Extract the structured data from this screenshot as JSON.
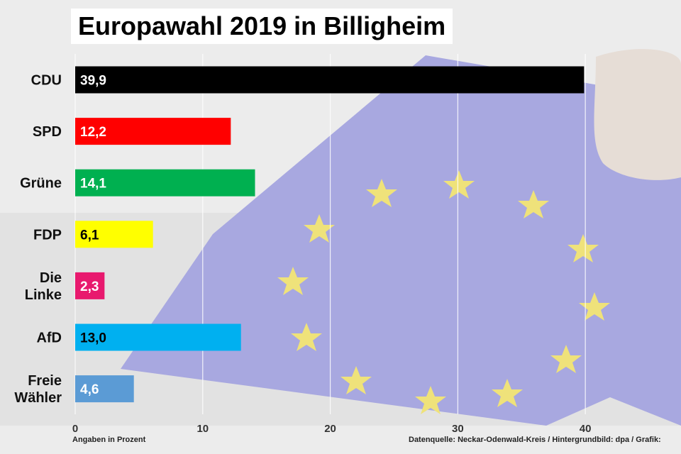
{
  "chart_data": {
    "type": "bar",
    "orientation": "horizontal",
    "title": "Europawahl 2019 in Billigheim",
    "categories": [
      "CDU",
      "SPD",
      "Grüne",
      "FDP",
      "Die Linke",
      "AfD",
      "Freie Wähler"
    ],
    "category_lines": [
      [
        "CDU"
      ],
      [
        "SPD"
      ],
      [
        "Grüne"
      ],
      [
        "FDP"
      ],
      [
        "Die",
        "Linke"
      ],
      [
        "AfD"
      ],
      [
        "Freie",
        "Wähler"
      ]
    ],
    "values": [
      39.9,
      12.2,
      14.1,
      6.1,
      2.3,
      13.0,
      4.6
    ],
    "value_labels": [
      "39,9",
      "12,2",
      "14,1",
      "6,1",
      "2,3",
      "13,0",
      "4,6"
    ],
    "colors": [
      "#000000",
      "#ff0000",
      "#00b050",
      "#ffff00",
      "#e8196e",
      "#00b0f0",
      "#5b9bd5"
    ],
    "label_colors": [
      "#ffffff",
      "#ffffff",
      "#ffffff",
      "#000000",
      "#ffffff",
      "#000000",
      "#ffffff"
    ],
    "xlim": [
      0,
      47
    ],
    "xticks": [
      0,
      10,
      20,
      30,
      40
    ],
    "grid": true,
    "xlabel": "Angaben in Prozent",
    "source": "Datenquelle: Neckar-Odenwald-Kreis  / Hintergrundbild: dpa /  Grafik:"
  }
}
